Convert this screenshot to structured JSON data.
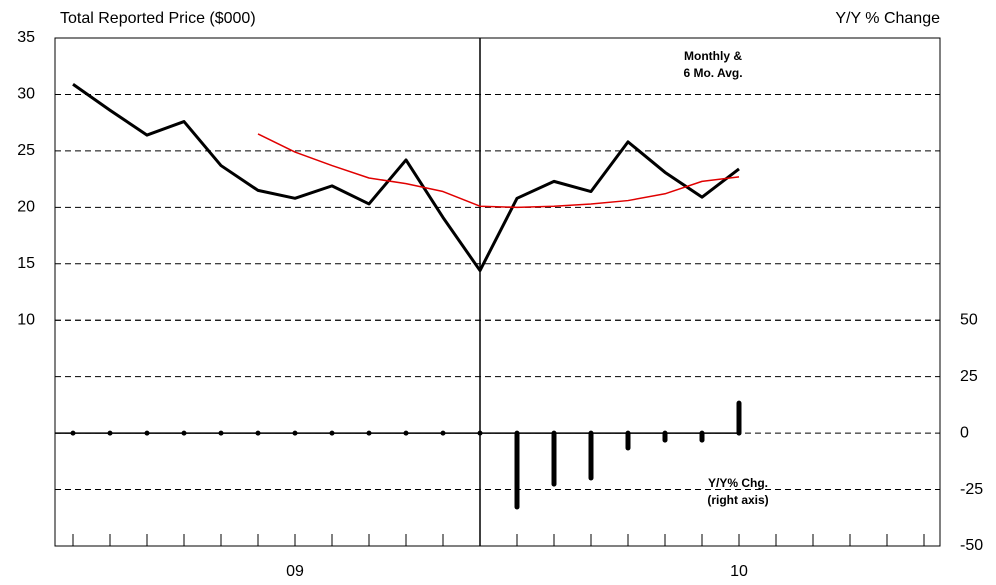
{
  "chart_data": {
    "type": "combo",
    "y_axis_title": "Total Reported Price ($000)",
    "y2_axis_title": "Y/Y % Change",
    "categories": [
      null,
      null,
      null,
      null,
      null,
      null,
      "09",
      null,
      null,
      null,
      null,
      null,
      null,
      null,
      null,
      null,
      null,
      null,
      "10",
      null,
      null,
      null,
      null,
      null
    ],
    "ylim": [
      -10,
      35
    ],
    "yticks": [
      10,
      15,
      20,
      25,
      30,
      35
    ],
    "y2lim": [
      -50,
      175
    ],
    "y2ticks": [
      -50,
      -25,
      0,
      25,
      50
    ],
    "grid": true,
    "series": [
      {
        "type": "line",
        "color": "#000000",
        "values": [
          30.9,
          28.6,
          26.4,
          27.6,
          23.7,
          21.5,
          20.8,
          21.9,
          20.3,
          24.2,
          19.1,
          14.4,
          20.8,
          22.3,
          21.4,
          25.8,
          23.1,
          20.9,
          23.4,
          null,
          null,
          null,
          null,
          null
        ]
      },
      {
        "type": "line",
        "color": "#e00000",
        "values": [
          null,
          null,
          null,
          null,
          null,
          26.5,
          24.9,
          23.7,
          22.6,
          22.1,
          21.4,
          20.1,
          20.0,
          20.1,
          20.3,
          20.6,
          21.2,
          22.3,
          22.7,
          null,
          null,
          null,
          null,
          null
        ]
      },
      {
        "type": "bar",
        "axis": "y2",
        "color": "#000000",
        "values": [
          0,
          0,
          0,
          0,
          0,
          0,
          0,
          0,
          0,
          0,
          0,
          0,
          -32.7,
          -22.6,
          -19.9,
          -6.6,
          -3.1,
          -3.1,
          13.3,
          null,
          null,
          null,
          null,
          null
        ]
      }
    ],
    "annotations": [
      [
        "Monthly &",
        "6 Mo. Avg."
      ],
      [
        "Y/Y% Chg.",
        "(right axis)"
      ]
    ]
  }
}
